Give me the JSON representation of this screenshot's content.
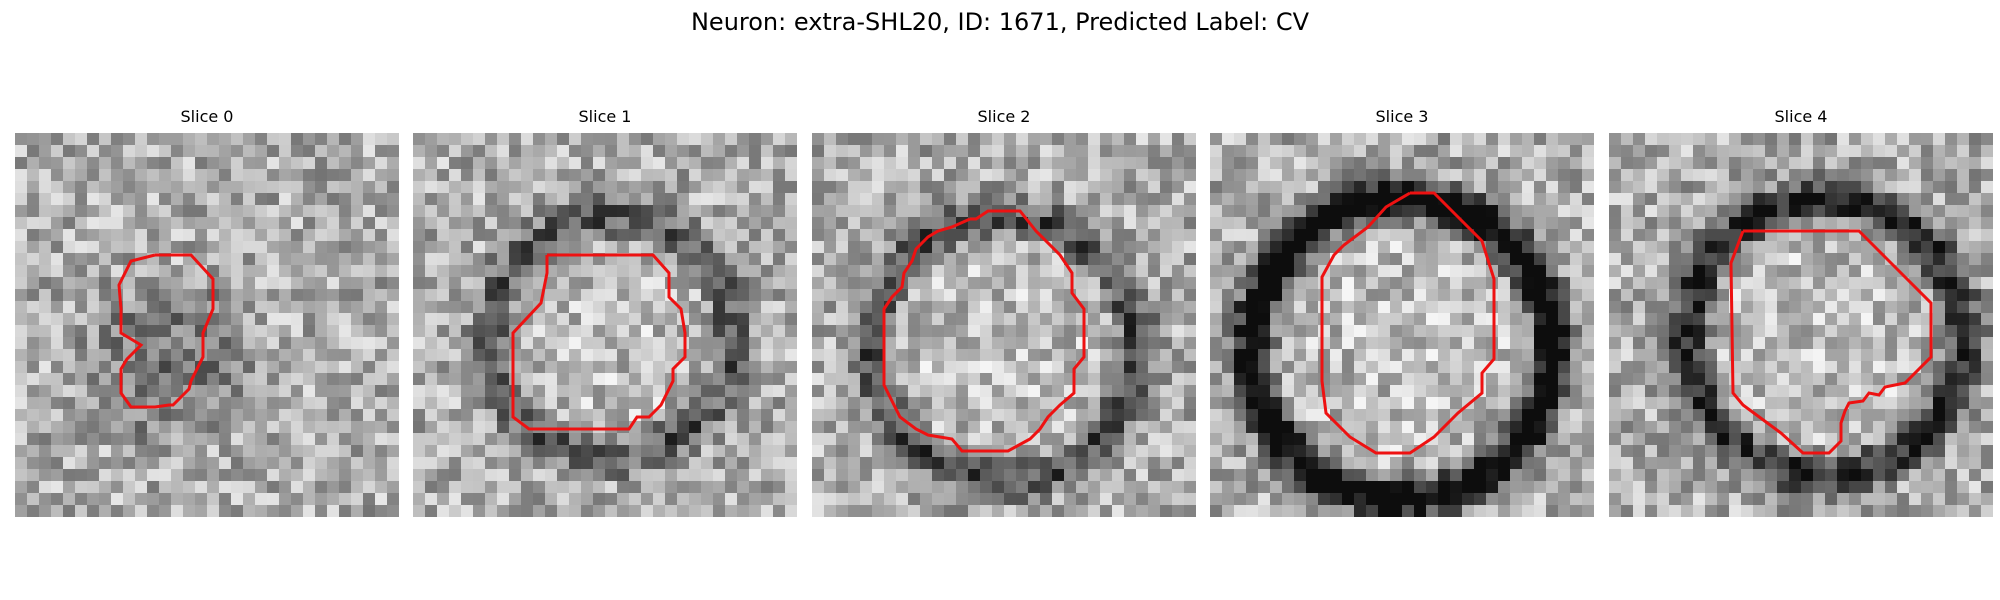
{
  "figure": {
    "title": "Neuron: extra-SHL20, ID: 1671, Predicted Label: CV",
    "contour_color": "#ee1111"
  },
  "panels": [
    {
      "title": "Slice 0"
    },
    {
      "title": "Slice 1"
    },
    {
      "title": "Slice 2"
    },
    {
      "title": "Slice 3"
    },
    {
      "title": "Slice 4"
    }
  ]
}
